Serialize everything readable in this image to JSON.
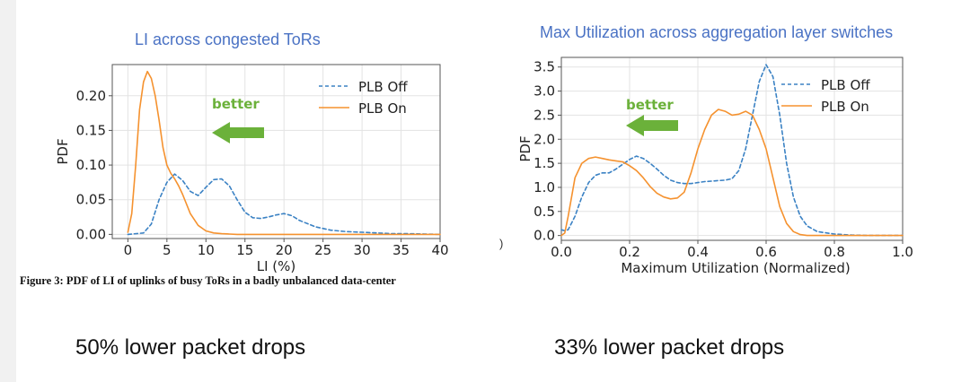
{
  "colors": {
    "plb_off": "#3b82c4",
    "plb_on": "#f5922f",
    "better": "#6bb13a",
    "title": "#4a72c4"
  },
  "caption": "Figure 3: PDF of LI of uplinks of busy ToRs in a badly unbalanced data-center",
  "bottom_left": "50% lower packet drops",
  "bottom_right": "33% lower packet drops",
  "stray_mark": ")",
  "chart_data": [
    {
      "type": "line",
      "title": "LI across congested ToRs",
      "xlabel": "LI (%)",
      "ylabel": "PDF",
      "xlim": [
        -2,
        40
      ],
      "ylim": [
        -0.006,
        0.245
      ],
      "xticks": [
        0,
        5,
        10,
        15,
        20,
        25,
        30,
        35,
        40
      ],
      "yticks": [
        0.0,
        0.05,
        0.1,
        0.15,
        0.2
      ],
      "ytick_labels": [
        "0.00",
        "0.05",
        "0.10",
        "0.15",
        "0.20"
      ],
      "legend": "top-right",
      "annotation": "better",
      "series": [
        {
          "name": "PLB Off",
          "style": "dashed",
          "x": [
            0,
            2,
            3,
            4,
            5,
            6,
            7,
            8,
            9,
            10,
            11,
            12,
            13,
            14,
            15,
            16,
            17,
            18,
            19,
            20,
            21,
            22,
            24,
            26,
            28,
            30,
            32,
            34,
            36,
            38,
            40
          ],
          "y": [
            0.0,
            0.002,
            0.015,
            0.05,
            0.075,
            0.087,
            0.078,
            0.062,
            0.056,
            0.068,
            0.079,
            0.08,
            0.07,
            0.05,
            0.032,
            0.024,
            0.023,
            0.025,
            0.028,
            0.03,
            0.027,
            0.02,
            0.011,
            0.006,
            0.004,
            0.003,
            0.002,
            0.001,
            0.001,
            0.0005,
            0.0
          ]
        },
        {
          "name": "PLB On",
          "style": "solid",
          "x": [
            0,
            0.5,
            1,
            1.5,
            2,
            2.5,
            3,
            3.5,
            4,
            4.5,
            5,
            5.5,
            6,
            6.5,
            7,
            8,
            9,
            10,
            11,
            12,
            13,
            14,
            16,
            20,
            25,
            30,
            35,
            40
          ],
          "y": [
            0.003,
            0.03,
            0.1,
            0.18,
            0.22,
            0.235,
            0.225,
            0.2,
            0.165,
            0.125,
            0.1,
            0.088,
            0.08,
            0.07,
            0.058,
            0.03,
            0.013,
            0.005,
            0.002,
            0.001,
            0.0005,
            0.0,
            0.0,
            0.0,
            0.0,
            0.0,
            0.0,
            0.0
          ]
        }
      ]
    },
    {
      "type": "line",
      "title": "Max Utilization across aggregation layer switches",
      "xlabel": "Maximum Utilization (Normalized)",
      "ylabel": "PDF",
      "xlim": [
        0.0,
        1.0
      ],
      "ylim": [
        -0.1,
        3.7
      ],
      "xticks": [
        0.0,
        0.2,
        0.4,
        0.6,
        0.8,
        1.0
      ],
      "xtick_labels": [
        "0.0",
        "0.2",
        "0.4",
        "0.6",
        "0.8",
        "1.0"
      ],
      "yticks": [
        0.0,
        0.5,
        1.0,
        1.5,
        2.0,
        2.5,
        3.0,
        3.5
      ],
      "ytick_labels": [
        "0.0",
        "0.5",
        "1.0",
        "1.5",
        "2.0",
        "2.5",
        "3.0",
        "3.5"
      ],
      "legend": "top-right",
      "annotation": "better",
      "series": [
        {
          "name": "PLB Off",
          "style": "dashed",
          "x": [
            0.0,
            0.01,
            0.02,
            0.04,
            0.06,
            0.08,
            0.1,
            0.12,
            0.14,
            0.16,
            0.18,
            0.2,
            0.22,
            0.24,
            0.26,
            0.28,
            0.3,
            0.32,
            0.34,
            0.36,
            0.38,
            0.4,
            0.42,
            0.44,
            0.46,
            0.48,
            0.5,
            0.52,
            0.54,
            0.56,
            0.58,
            0.6,
            0.62,
            0.64,
            0.66,
            0.68,
            0.7,
            0.72,
            0.75,
            0.8,
            0.85,
            0.9,
            1.0
          ],
          "y": [
            0.12,
            0.1,
            0.12,
            0.4,
            0.8,
            1.1,
            1.25,
            1.3,
            1.3,
            1.38,
            1.48,
            1.58,
            1.65,
            1.6,
            1.5,
            1.38,
            1.25,
            1.15,
            1.1,
            1.08,
            1.08,
            1.1,
            1.12,
            1.13,
            1.14,
            1.15,
            1.18,
            1.35,
            1.8,
            2.5,
            3.2,
            3.55,
            3.3,
            2.5,
            1.5,
            0.8,
            0.4,
            0.2,
            0.08,
            0.03,
            0.01,
            0.0,
            0.0
          ]
        },
        {
          "name": "PLB On",
          "style": "solid",
          "x": [
            0.0,
            0.01,
            0.02,
            0.04,
            0.06,
            0.08,
            0.1,
            0.12,
            0.14,
            0.16,
            0.18,
            0.2,
            0.22,
            0.24,
            0.26,
            0.28,
            0.3,
            0.32,
            0.34,
            0.36,
            0.38,
            0.4,
            0.42,
            0.44,
            0.46,
            0.48,
            0.5,
            0.52,
            0.54,
            0.56,
            0.58,
            0.6,
            0.62,
            0.64,
            0.66,
            0.68,
            0.7,
            0.72,
            0.75,
            0.8,
            0.85,
            0.9,
            1.0
          ],
          "y": [
            0.0,
            0.05,
            0.4,
            1.2,
            1.5,
            1.6,
            1.63,
            1.6,
            1.57,
            1.55,
            1.53,
            1.45,
            1.35,
            1.2,
            1.02,
            0.88,
            0.8,
            0.76,
            0.78,
            0.9,
            1.3,
            1.8,
            2.2,
            2.5,
            2.62,
            2.58,
            2.5,
            2.52,
            2.58,
            2.5,
            2.2,
            1.8,
            1.2,
            0.6,
            0.25,
            0.08,
            0.02,
            0.0,
            0.0,
            0.0,
            0.0,
            0.0,
            0.0
          ]
        }
      ]
    }
  ]
}
